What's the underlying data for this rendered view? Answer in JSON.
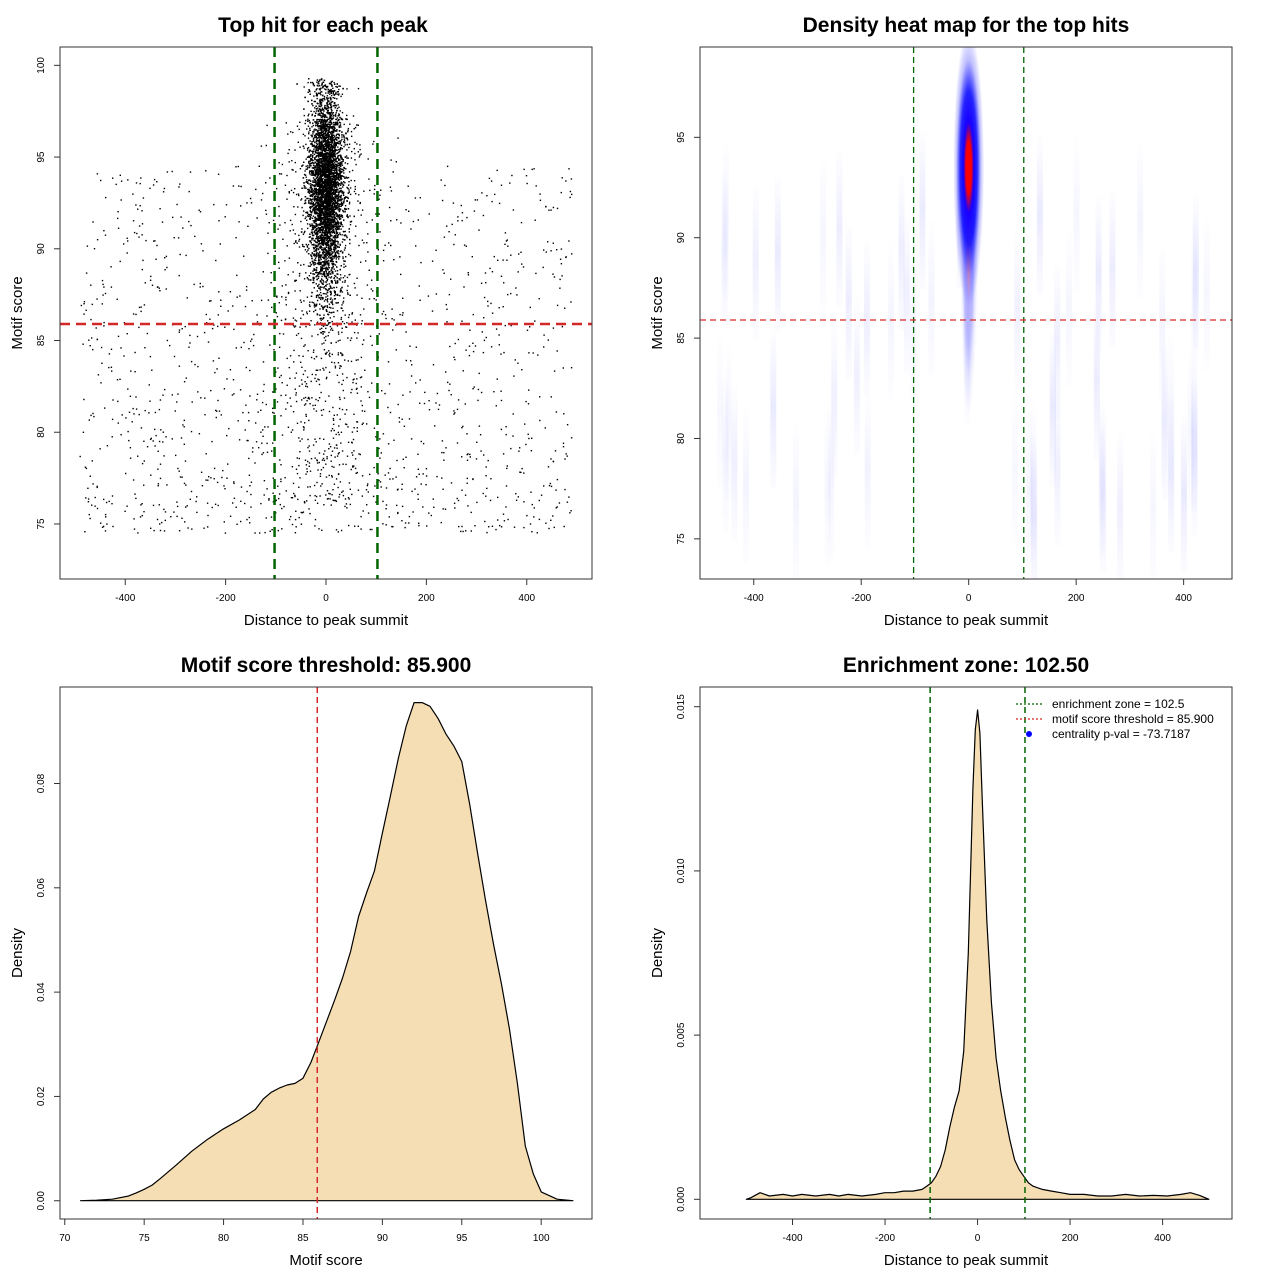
{
  "chart_data": [
    {
      "type": "scatter",
      "title": "Top hit for each peak",
      "xlabel": "Distance to peak summit",
      "ylabel": "Motif score",
      "xlim": [
        -530,
        530
      ],
      "ylim": [
        72,
        101
      ],
      "xticks": [
        -400,
        -200,
        0,
        200,
        400
      ],
      "yticks": [
        75,
        80,
        85,
        90,
        95,
        100
      ],
      "xtick_labels": [
        "-400",
        "-200",
        "0",
        "200",
        "400"
      ],
      "ytick_labels": [
        "75",
        "80",
        "85",
        "90",
        "95",
        "100"
      ],
      "points_note": "≈6500 points; dense vertical core centred at distance 0 (≈ -40 to 40) for scores 85–99, sparse uniform background from -500 to 500 for scores 73–95",
      "hlines": [
        {
          "y": 85.9,
          "color": "#d62728",
          "style": "dashed"
        }
      ],
      "vlines": [
        {
          "x": -102.5,
          "color": "#006400",
          "style": "dashed"
        },
        {
          "x": 102.5,
          "color": "#006400",
          "style": "dashed"
        }
      ]
    },
    {
      "type": "heatmap",
      "title": "Density heat map for the top hits",
      "xlabel": "Distance to peak summit",
      "ylabel": "Motif score",
      "xlim": [
        -500,
        490
      ],
      "ylim": [
        73,
        99.5
      ],
      "xticks": [
        -400,
        -200,
        0,
        200,
        400
      ],
      "yticks": [
        75,
        80,
        85,
        90,
        95
      ],
      "xtick_labels": [
        "-400",
        "-200",
        "0",
        "200",
        "400"
      ],
      "ytick_labels": [
        "75",
        "80",
        "85",
        "90",
        "95"
      ],
      "hotspot": {
        "x": 0,
        "y": 93.5,
        "sd_x": 9,
        "sd_y": 3
      },
      "colors": [
        "#ffffff",
        "#0000ff",
        "#ff0000"
      ],
      "hlines": [
        {
          "y": 85.9,
          "color": "#d62728",
          "style": "dashed"
        }
      ],
      "vlines": [
        {
          "x": -102.5,
          "color": "#006400",
          "style": "dashed"
        },
        {
          "x": 102.5,
          "color": "#006400",
          "style": "dashed"
        }
      ]
    },
    {
      "type": "area",
      "title": "Motif score threshold: 85.900",
      "xlabel": "Motif score",
      "ylabel": "Density",
      "xlim": [
        69.7,
        103.2
      ],
      "ylim": [
        -0.0035,
        0.0985
      ],
      "xticks": [
        70,
        75,
        80,
        85,
        90,
        95,
        100
      ],
      "yticks": [
        0.0,
        0.02,
        0.04,
        0.06,
        0.08
      ],
      "xtick_labels": [
        "70",
        "75",
        "80",
        "85",
        "90",
        "95",
        "100"
      ],
      "ytick_labels": [
        "0.00",
        "0.02",
        "0.04",
        "0.06",
        "0.08"
      ],
      "fill": "#f5deb3",
      "x": [
        71,
        72,
        73,
        74,
        74.5,
        75,
        75.5,
        76,
        77,
        78,
        79,
        80,
        81,
        82,
        82.5,
        83,
        83.5,
        84,
        84.5,
        85,
        85.5,
        86,
        86.5,
        87,
        87.5,
        88,
        88.5,
        89,
        89.5,
        90,
        90.5,
        91,
        91.5,
        92,
        92.5,
        93,
        93.5,
        94,
        94.5,
        95,
        95.5,
        96,
        96.5,
        97,
        97.5,
        98,
        98.5,
        99,
        99.5,
        100,
        101,
        102
      ],
      "y": [
        0.0,
        0.0001,
        0.0003,
        0.0009,
        0.0015,
        0.0022,
        0.003,
        0.0042,
        0.0068,
        0.0095,
        0.0118,
        0.0138,
        0.0155,
        0.0175,
        0.0195,
        0.0208,
        0.0216,
        0.0222,
        0.0225,
        0.0235,
        0.0265,
        0.0305,
        0.0345,
        0.0385,
        0.0428,
        0.0478,
        0.0545,
        0.059,
        0.0632,
        0.0705,
        0.0775,
        0.0848,
        0.091,
        0.0955,
        0.0955,
        0.0948,
        0.0925,
        0.0895,
        0.0872,
        0.0842,
        0.076,
        0.0665,
        0.0575,
        0.0492,
        0.0415,
        0.033,
        0.0225,
        0.0105,
        0.0052,
        0.0017,
        0.0003,
        0.0
      ],
      "vlines": [
        {
          "x": 85.9,
          "color": "#d62728",
          "style": "dashed"
        }
      ]
    },
    {
      "type": "area",
      "title": "Enrichment zone: 102.50",
      "xlabel": "Distance to peak summit",
      "ylabel": "Density",
      "xlim": [
        -600,
        550
      ],
      "ylim": [
        -0.0006,
        0.0156
      ],
      "xticks": [
        -400,
        -200,
        0,
        200,
        400
      ],
      "yticks": [
        0.0,
        0.005,
        0.01,
        0.015
      ],
      "xtick_labels": [
        "-400",
        "-200",
        "0",
        "200",
        "400"
      ],
      "ytick_labels": [
        "0.000",
        "0.005",
        "0.010",
        "0.015"
      ],
      "fill": "#f5deb3",
      "x": [
        -500,
        -490,
        -470,
        -450,
        -420,
        -400,
        -380,
        -350,
        -320,
        -300,
        -280,
        -250,
        -220,
        -200,
        -180,
        -160,
        -140,
        -120,
        -110,
        -100,
        -90,
        -80,
        -70,
        -60,
        -50,
        -40,
        -30,
        -20,
        -10,
        -5,
        0,
        5,
        10,
        20,
        30,
        40,
        50,
        60,
        70,
        80,
        90,
        100,
        110,
        120,
        140,
        160,
        180,
        200,
        230,
        260,
        290,
        320,
        350,
        380,
        410,
        440,
        460,
        480,
        500
      ],
      "y": [
        0.0,
        5e-05,
        0.0002,
        0.0001,
        0.00015,
        0.0001,
        0.00015,
        0.0001,
        0.00015,
        0.0001,
        0.00015,
        0.0001,
        0.00015,
        0.0002,
        0.0002,
        0.00025,
        0.00025,
        0.0003,
        0.0004,
        0.0005,
        0.0007,
        0.001,
        0.0015,
        0.0022,
        0.0028,
        0.0033,
        0.0045,
        0.0075,
        0.0125,
        0.0143,
        0.0149,
        0.0142,
        0.0122,
        0.0085,
        0.006,
        0.0043,
        0.0033,
        0.0025,
        0.0018,
        0.0012,
        0.0009,
        0.0007,
        0.0005,
        0.0004,
        0.0003,
        0.00025,
        0.0002,
        0.00015,
        0.00015,
        0.0001,
        0.0001,
        0.00015,
        0.0001,
        0.00012,
        0.0001,
        0.00015,
        0.0002,
        0.00012,
        0.0
      ],
      "vlines": [
        {
          "x": -102.5,
          "color": "#006400",
          "style": "dashed"
        },
        {
          "x": 102.5,
          "color": "#006400",
          "style": "dashed"
        }
      ],
      "legend": [
        {
          "label": "enrichment zone = 102.5",
          "color": "#006400",
          "symbol": "dotted-line"
        },
        {
          "label": "motif score threshold = 85.900",
          "color": "#d62728",
          "symbol": "dotted-line"
        },
        {
          "label": "centrality p-val = -73.7187",
          "color": "#0000ff",
          "symbol": "dot"
        }
      ],
      "legend_position": "top-right"
    }
  ]
}
